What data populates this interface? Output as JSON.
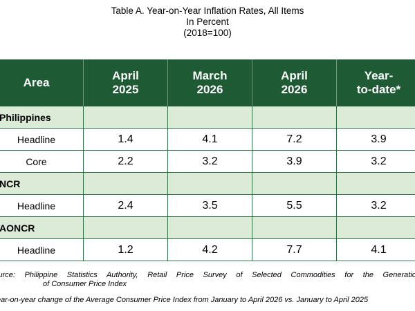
{
  "title": {
    "line1": "Table A. Year-on-Year Inflation Rates, All Items",
    "line2": "In Percent",
    "line3": "(2018=100)"
  },
  "table": {
    "headers": {
      "area": "Area",
      "col1_line1": "April",
      "col1_line2": "2025",
      "col2_line1": "March",
      "col2_line2": "2026",
      "col3_line1": "April",
      "col3_line2": "2026",
      "col4_line1": "Year-",
      "col4_line2": "to-date*"
    },
    "groups": [
      {
        "name": "Philippines",
        "rows": [
          {
            "label": "Headline",
            "values": [
              "1.4",
              "4.1",
              "7.2",
              "3.9"
            ]
          },
          {
            "label": "Core",
            "values": [
              "2.2",
              "3.2",
              "3.9",
              "3.2"
            ]
          }
        ]
      },
      {
        "name": "NCR",
        "rows": [
          {
            "label": "Headline",
            "values": [
              "2.4",
              "3.5",
              "5.5",
              "3.2"
            ]
          }
        ]
      },
      {
        "name": "AONCR",
        "rows": [
          {
            "label": "Headline",
            "values": [
              "1.2",
              "4.2",
              "7.7",
              "4.1"
            ]
          }
        ]
      }
    ]
  },
  "notes": {
    "source_line1": "Source: Philippine Statistics Authority, Retail Price Survey of Selected Commodities for the Generation",
    "source_line2": "of Consumer Price Index",
    "footnote": "*Year-on-year change of the Average Consumer Price Index from January to April 2026 vs. January to April 2025"
  },
  "colors": {
    "header_bg": "#1e5b34",
    "group_row_bg": "#dcebd8",
    "border": "#2f6f44"
  }
}
